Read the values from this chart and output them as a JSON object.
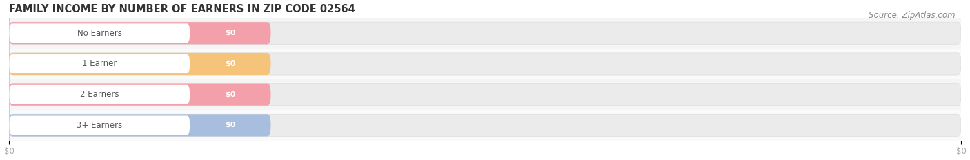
{
  "title": "FAMILY INCOME BY NUMBER OF EARNERS IN ZIP CODE 02564",
  "source": "Source: ZipAtlas.com",
  "categories": [
    "No Earners",
    "1 Earner",
    "2 Earners",
    "3+ Earners"
  ],
  "values": [
    0,
    0,
    0,
    0
  ],
  "bar_colors": [
    "#f4a0aa",
    "#f5c47a",
    "#f4a0aa",
    "#a8bede"
  ],
  "bar_bg_color": "#ebebeb",
  "value_labels": [
    "$0",
    "$0",
    "$0",
    "$0"
  ],
  "title_fontsize": 10.5,
  "source_fontsize": 8.5,
  "background_color": "#ffffff",
  "row_bg_colors": [
    "#f7f7f7",
    "#ffffff",
    "#f7f7f7",
    "#ffffff"
  ],
  "tick_label_color": "#aaaaaa",
  "label_text_color": "#555555",
  "value_text_color": "#ffffff"
}
